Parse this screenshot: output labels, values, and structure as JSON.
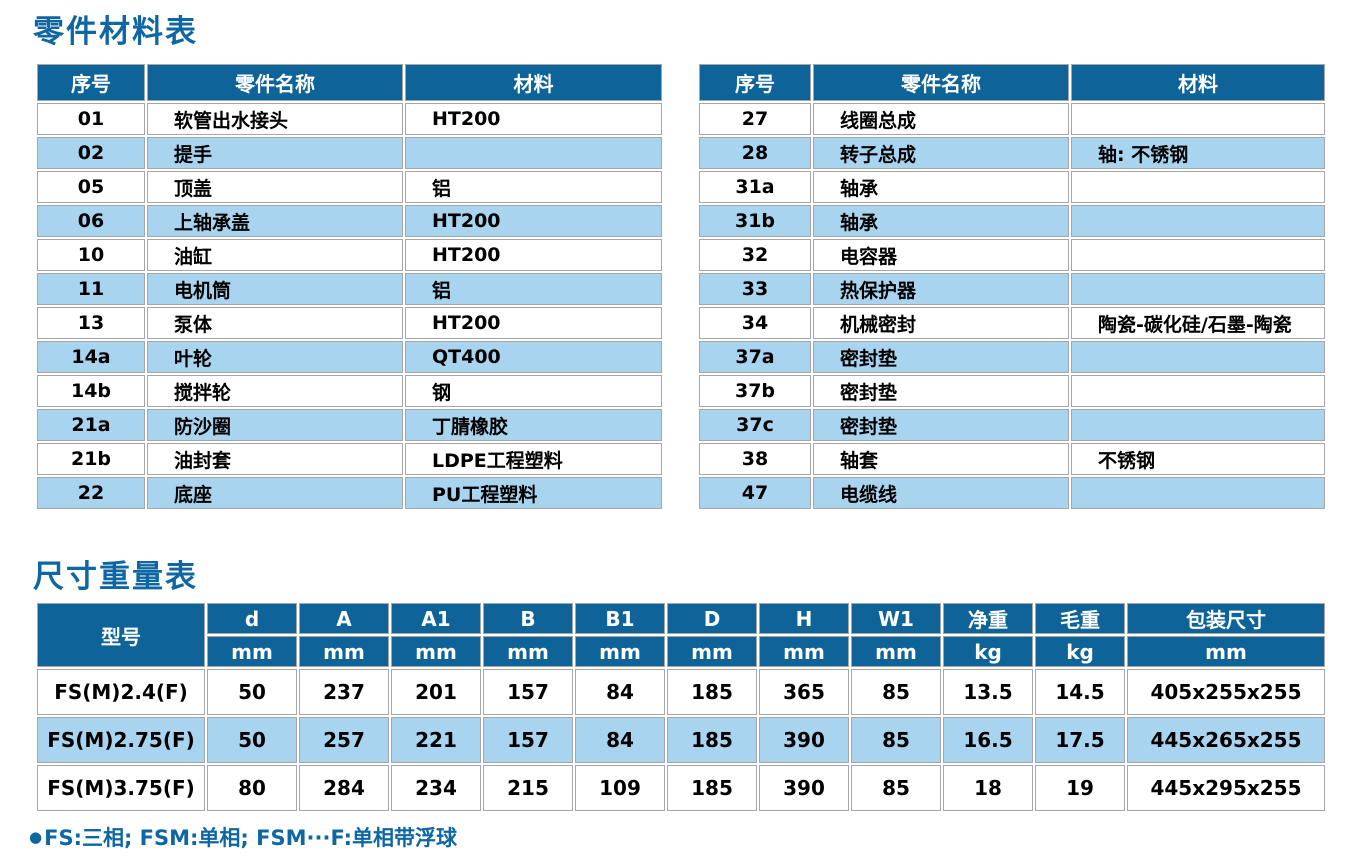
{
  "titles": {
    "parts": "零件材料表",
    "dims": "尺寸重量表"
  },
  "colors": {
    "header_blue": "#0e6398",
    "row_light_blue": "#a9d4ef",
    "title_blue": "#0e67a2",
    "grid_gray": "#a6a6a6"
  },
  "parts_table": {
    "headers": [
      "序号",
      "零件名称",
      "材料"
    ],
    "left_rows": [
      [
        "01",
        "软管出水接头",
        "HT200"
      ],
      [
        "02",
        "提手",
        ""
      ],
      [
        "05",
        "顶盖",
        "铝"
      ],
      [
        "06",
        "上轴承盖",
        "HT200"
      ],
      [
        "10",
        "油缸",
        "HT200"
      ],
      [
        "11",
        "电机筒",
        "铝"
      ],
      [
        "13",
        "泵体",
        "HT200"
      ],
      [
        "14a",
        "叶轮",
        "QT400"
      ],
      [
        "14b",
        "搅拌轮",
        "钢"
      ],
      [
        "21a",
        "防沙圈",
        "丁腈橡胶"
      ],
      [
        "21b",
        "油封套",
        "LDPE工程塑料"
      ],
      [
        "22",
        "底座",
        "PU工程塑料"
      ]
    ],
    "right_rows": [
      [
        "27",
        "线圈总成",
        ""
      ],
      [
        "28",
        "转子总成",
        "轴: 不锈钢"
      ],
      [
        "31a",
        "轴承",
        ""
      ],
      [
        "31b",
        "轴承",
        ""
      ],
      [
        "32",
        "电容器",
        ""
      ],
      [
        "33",
        "热保护器",
        ""
      ],
      [
        "34",
        "机械密封",
        "陶瓷-碳化硅/石墨-陶瓷"
      ],
      [
        "37a",
        "密封垫",
        ""
      ],
      [
        "37b",
        "密封垫",
        ""
      ],
      [
        "37c",
        "密封垫",
        ""
      ],
      [
        "38",
        "轴套",
        "不锈钢"
      ],
      [
        "47",
        "电缆线",
        ""
      ]
    ]
  },
  "dimension_table": {
    "model_header": "型号",
    "columns": [
      {
        "label": "d",
        "unit": "mm"
      },
      {
        "label": "A",
        "unit": "mm"
      },
      {
        "label": "A1",
        "unit": "mm"
      },
      {
        "label": "B",
        "unit": "mm"
      },
      {
        "label": "B1",
        "unit": "mm"
      },
      {
        "label": "D",
        "unit": "mm"
      },
      {
        "label": "H",
        "unit": "mm"
      },
      {
        "label": "W1",
        "unit": "mm"
      },
      {
        "label": "净重",
        "unit": "kg"
      },
      {
        "label": "毛重",
        "unit": "kg"
      },
      {
        "label": "包装尺寸",
        "unit": "mm"
      }
    ],
    "rows": [
      {
        "model": "FS(M)2.4(F)",
        "values": [
          "50",
          "237",
          "201",
          "157",
          "84",
          "185",
          "365",
          "85",
          "13.5",
          "14.5",
          "405x255x255"
        ]
      },
      {
        "model": "FS(M)2.75(F)",
        "values": [
          "50",
          "257",
          "221",
          "157",
          "84",
          "185",
          "390",
          "85",
          "16.5",
          "17.5",
          "445x265x255"
        ]
      },
      {
        "model": "FS(M)3.75(F)",
        "values": [
          "80",
          "284",
          "234",
          "215",
          "109",
          "185",
          "390",
          "85",
          "18",
          "19",
          "445x295x255"
        ]
      }
    ]
  },
  "footnote": {
    "bullet": "●",
    "text": "FS:三相; FSM:单相; FSM···F:单相带浮球"
  }
}
